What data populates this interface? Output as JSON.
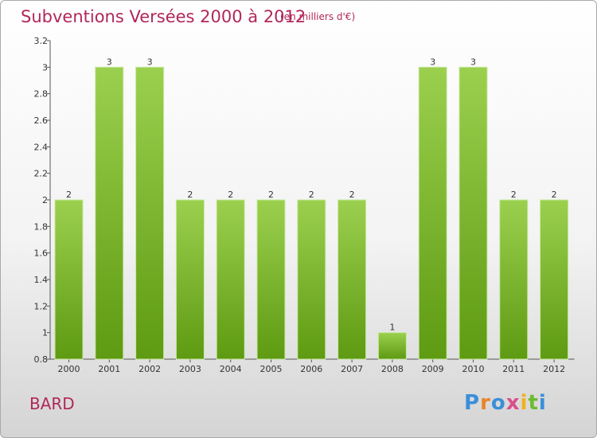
{
  "header": {
    "title": "Subventions Versées 2000 à 2012",
    "unit": "(en milliers d'€)"
  },
  "footer": {
    "commune": "BARD",
    "logo_text": "Proxiti"
  },
  "colors": {
    "bar_light": "#9bd04e",
    "bar_dark": "#5e9a12",
    "title": "#b0275a"
  },
  "chart_data": {
    "type": "bar",
    "title": "Subventions Versées 2000 à 2012",
    "categories": [
      "2000",
      "2001",
      "2002",
      "2003",
      "2004",
      "2005",
      "2006",
      "2007",
      "2008",
      "2009",
      "2010",
      "2011",
      "2012"
    ],
    "values": [
      2,
      3,
      3,
      2,
      2,
      2,
      2,
      2,
      1,
      3,
      3,
      2,
      2
    ],
    "ylim": [
      0.8,
      3.2
    ],
    "y_ticks": [
      0.8,
      1,
      1.2,
      1.4,
      1.6,
      1.8,
      2,
      2.2,
      2.4,
      2.6,
      2.8,
      3,
      3.2
    ],
    "y_tick_labels": [
      "0.8",
      "1",
      "1.2",
      "1.4",
      "1.6",
      "1.8",
      "2",
      "2.2",
      "2.4",
      "2.6",
      "2.8",
      "3",
      "3.2"
    ],
    "grid": false,
    "legend": "none"
  }
}
